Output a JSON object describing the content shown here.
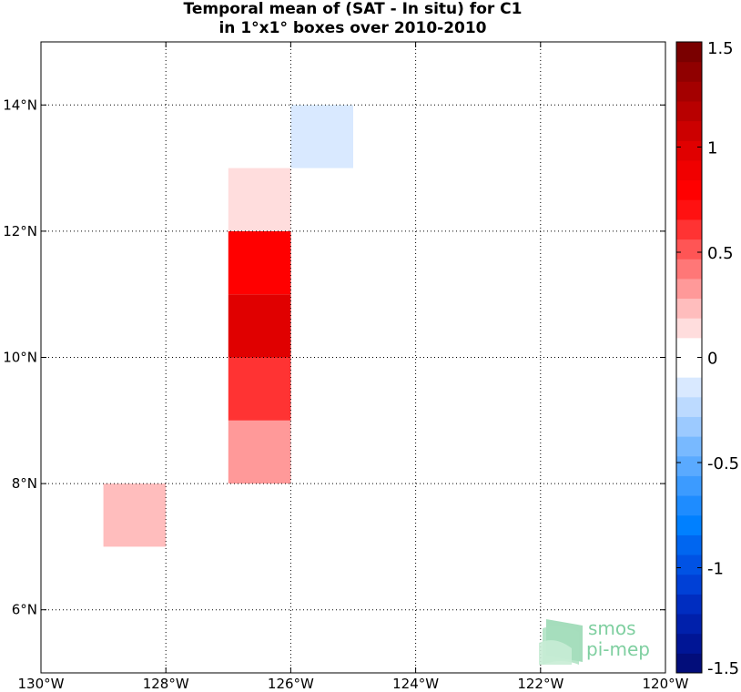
{
  "chart_data": {
    "type": "heatmap",
    "title_lines": [
      "Temporal mean of (SAT - In situ) for C1",
      "in 1°x1° boxes over 2010-2010"
    ],
    "xlim": [
      -130,
      -120
    ],
    "ylim": [
      5,
      15
    ],
    "x_ticks": [
      {
        "value": -130,
        "label": "130°W"
      },
      {
        "value": -128,
        "label": "128°W"
      },
      {
        "value": -126,
        "label": "126°W"
      },
      {
        "value": -124,
        "label": "124°W"
      },
      {
        "value": -122,
        "label": "122°W"
      },
      {
        "value": -120,
        "label": "120°W"
      }
    ],
    "y_ticks": [
      {
        "value": 6,
        "label": "6°N"
      },
      {
        "value": 8,
        "label": "8°N"
      },
      {
        "value": 10,
        "label": "10°N"
      },
      {
        "value": 12,
        "label": "12°N"
      },
      {
        "value": 14,
        "label": "14°N"
      }
    ],
    "grid": true,
    "cells": [
      {
        "lon": [
          -127,
          -126
        ],
        "lat": [
          8,
          9
        ],
        "value": 0.35
      },
      {
        "lon": [
          -127,
          -126
        ],
        "lat": [
          9,
          10
        ],
        "value": 0.6
      },
      {
        "lon": [
          -127,
          -126
        ],
        "lat": [
          10,
          11
        ],
        "value": 0.95
      },
      {
        "lon": [
          -127,
          -126
        ],
        "lat": [
          11,
          12
        ],
        "value": 0.8
      },
      {
        "lon": [
          -127,
          -126
        ],
        "lat": [
          12,
          13
        ],
        "value": 0.12
      },
      {
        "lon": [
          -126,
          -125
        ],
        "lat": [
          13,
          14
        ],
        "value": -0.12
      },
      {
        "lon": [
          -129,
          -128
        ],
        "lat": [
          7,
          8
        ],
        "value": 0.25
      }
    ],
    "colorbar": {
      "range": [
        -1.5,
        1.5
      ],
      "ticks": [
        {
          "value": 1.5,
          "label": "1.5"
        },
        {
          "value": 1,
          "label": "1"
        },
        {
          "value": 0.5,
          "label": "0.5"
        },
        {
          "value": 0,
          "label": "0"
        },
        {
          "value": -0.5,
          "label": "-0.5"
        },
        {
          "value": -1,
          "label": "-1"
        },
        {
          "value": -1.5,
          "label": "-1.5"
        }
      ],
      "colors": [
        "#020d7a",
        "#001595",
        "#0020ab",
        "#002dc0",
        "#0040d6",
        "#0052e4",
        "#0066f0",
        "#0080ff",
        "#1e8cff",
        "#3c9bff",
        "#5aaaff",
        "#78b9ff",
        "#9ccaff",
        "#bcdaff",
        "#d9e9ff",
        "#ffffff",
        "#ffffff",
        "#ffdddd",
        "#ffbdbd",
        "#ff9999",
        "#ff7777",
        "#ff5555",
        "#ff3333",
        "#ff1111",
        "#ff0000",
        "#f00000",
        "#e00000",
        "#cc0000",
        "#b80000",
        "#a40000",
        "#900000",
        "#7a0000"
      ]
    }
  },
  "logo": {
    "line1": "smos",
    "line2": "pi-mep",
    "color": "#7fcfa0"
  }
}
